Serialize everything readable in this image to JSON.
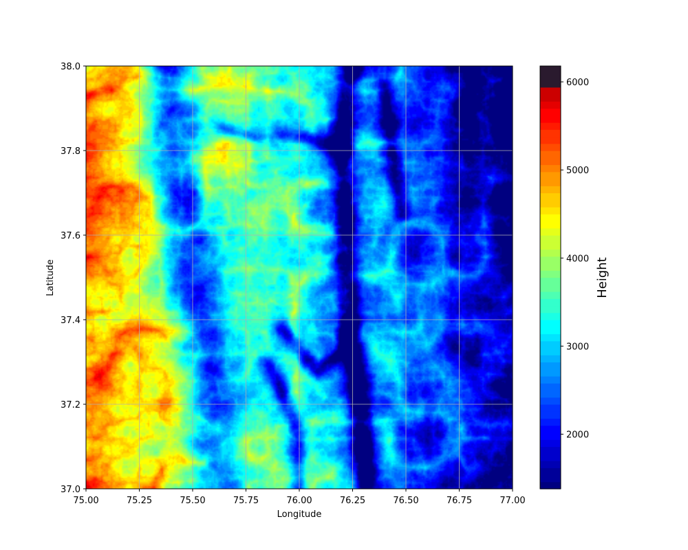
{
  "chart_data": {
    "type": "heatmap",
    "title": "",
    "xlabel": "Longitude",
    "ylabel": "Latitude",
    "xlim": [
      75.0,
      77.0
    ],
    "ylim": [
      37.0,
      38.0
    ],
    "xticks": [
      "75.00",
      "75.25",
      "75.50",
      "75.75",
      "76.00",
      "76.25",
      "76.50",
      "76.75",
      "77.00"
    ],
    "xtick_values": [
      75.0,
      75.25,
      75.5,
      75.75,
      76.0,
      76.25,
      76.5,
      76.75,
      77.0
    ],
    "yticks": [
      "37.0",
      "37.2",
      "37.4",
      "37.6",
      "37.8",
      "38.0"
    ],
    "ytick_values": [
      37.0,
      37.2,
      37.4,
      37.6,
      37.8,
      38.0
    ],
    "grid": true,
    "colormap": "jet (discrete bands)",
    "colorbar": {
      "label": "Height",
      "range": [
        1380,
        6180
      ],
      "ticks": [
        "2000",
        "3000",
        "4000",
        "5000",
        "6000"
      ],
      "tick_values": [
        2000,
        3000,
        4000,
        5000,
        6000
      ]
    },
    "description_data": {
      "west_high_region_height": 5500,
      "west_valley_height": 3300,
      "central_river_height": 1700,
      "northeast_low_height": 1450
    }
  },
  "colors": {
    "grid": "#b0b0b0",
    "low": "#00008f",
    "high": "#ff6000",
    "peak": "#2a1a2e"
  }
}
